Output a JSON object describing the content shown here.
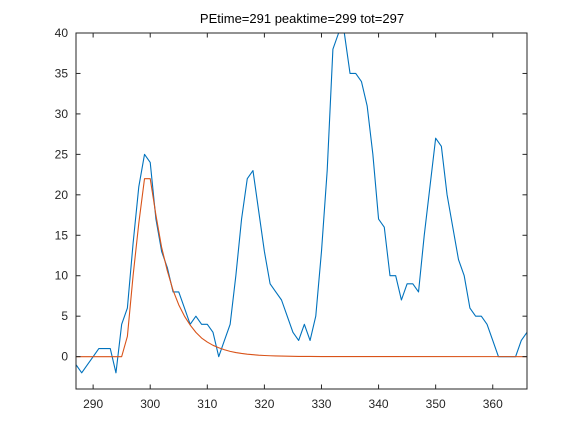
{
  "chart_data": {
    "type": "line",
    "title": "PEtime=291 peaktime=299 tot=297",
    "xlabel": "",
    "ylabel": "",
    "xlim": [
      287,
      366
    ],
    "ylim": [
      -4,
      40
    ],
    "xticks": [
      290,
      300,
      310,
      320,
      330,
      340,
      350,
      360
    ],
    "yticks": [
      0,
      5,
      10,
      15,
      20,
      25,
      30,
      35,
      40
    ],
    "grid": false,
    "legend": false,
    "series": [
      {
        "color": "#0072BD",
        "points": [
          [
            287,
            -1
          ],
          [
            288,
            -2
          ],
          [
            289,
            -1
          ],
          [
            290,
            0
          ],
          [
            291,
            1
          ],
          [
            292,
            1
          ],
          [
            293,
            1
          ],
          [
            294,
            -2
          ],
          [
            295,
            4
          ],
          [
            296,
            6
          ],
          [
            297,
            14
          ],
          [
            298,
            21
          ],
          [
            299,
            25
          ],
          [
            300,
            24
          ],
          [
            301,
            17
          ],
          [
            302,
            13
          ],
          [
            303,
            11
          ],
          [
            304,
            8
          ],
          [
            305,
            8
          ],
          [
            306,
            6
          ],
          [
            307,
            4
          ],
          [
            308,
            5
          ],
          [
            309,
            4
          ],
          [
            310,
            4
          ],
          [
            311,
            3
          ],
          [
            312,
            0
          ],
          [
            313,
            2
          ],
          [
            314,
            4
          ],
          [
            315,
            10
          ],
          [
            316,
            17
          ],
          [
            317,
            22
          ],
          [
            318,
            23
          ],
          [
            319,
            18
          ],
          [
            320,
            13
          ],
          [
            321,
            9
          ],
          [
            322,
            8
          ],
          [
            323,
            7
          ],
          [
            324,
            5
          ],
          [
            325,
            3
          ],
          [
            326,
            2
          ],
          [
            327,
            4
          ],
          [
            328,
            2
          ],
          [
            329,
            5
          ],
          [
            330,
            13
          ],
          [
            331,
            23
          ],
          [
            332,
            38
          ],
          [
            333,
            40
          ],
          [
            334,
            40
          ],
          [
            335,
            35
          ],
          [
            336,
            35
          ],
          [
            337,
            34
          ],
          [
            338,
            31
          ],
          [
            339,
            25
          ],
          [
            340,
            17
          ],
          [
            341,
            16
          ],
          [
            342,
            10
          ],
          [
            343,
            10
          ],
          [
            344,
            7
          ],
          [
            345,
            9
          ],
          [
            346,
            9
          ],
          [
            347,
            8
          ],
          [
            348,
            15
          ],
          [
            349,
            21
          ],
          [
            350,
            27
          ],
          [
            351,
            26
          ],
          [
            352,
            20
          ],
          [
            353,
            16
          ],
          [
            354,
            12
          ],
          [
            355,
            10
          ],
          [
            356,
            6
          ],
          [
            357,
            5
          ],
          [
            358,
            5
          ],
          [
            359,
            4
          ],
          [
            360,
            2
          ],
          [
            361,
            0
          ],
          [
            362,
            0
          ],
          [
            363,
            0
          ],
          [
            364,
            0
          ],
          [
            365,
            2
          ],
          [
            366,
            3
          ]
        ]
      },
      {
        "color": "#D95319",
        "points": [
          [
            287,
            0
          ],
          [
            294,
            0
          ],
          [
            295,
            0
          ],
          [
            296,
            2.5
          ],
          [
            297,
            10
          ],
          [
            298,
            16.5
          ],
          [
            299,
            22
          ],
          [
            300,
            22
          ],
          [
            301,
            17.5
          ],
          [
            302,
            13.5
          ],
          [
            303,
            10.6
          ],
          [
            304,
            8.2
          ],
          [
            305,
            6.4
          ],
          [
            306,
            5.0
          ],
          [
            307,
            3.9
          ],
          [
            308,
            3.0
          ],
          [
            309,
            2.3
          ],
          [
            310,
            1.8
          ],
          [
            311,
            1.4
          ],
          [
            312,
            1.1
          ],
          [
            313,
            0.85
          ],
          [
            314,
            0.65
          ],
          [
            315,
            0.5
          ],
          [
            316,
            0.39
          ],
          [
            317,
            0.3
          ],
          [
            318,
            0.24
          ],
          [
            319,
            0.18
          ],
          [
            320,
            0.14
          ],
          [
            321,
            0.11
          ],
          [
            322,
            0.085
          ],
          [
            323,
            0.066
          ],
          [
            324,
            0.05
          ],
          [
            325,
            0.04
          ],
          [
            326,
            0.03
          ],
          [
            328,
            0.02
          ],
          [
            330,
            0.01
          ],
          [
            366,
            0
          ]
        ]
      }
    ]
  }
}
